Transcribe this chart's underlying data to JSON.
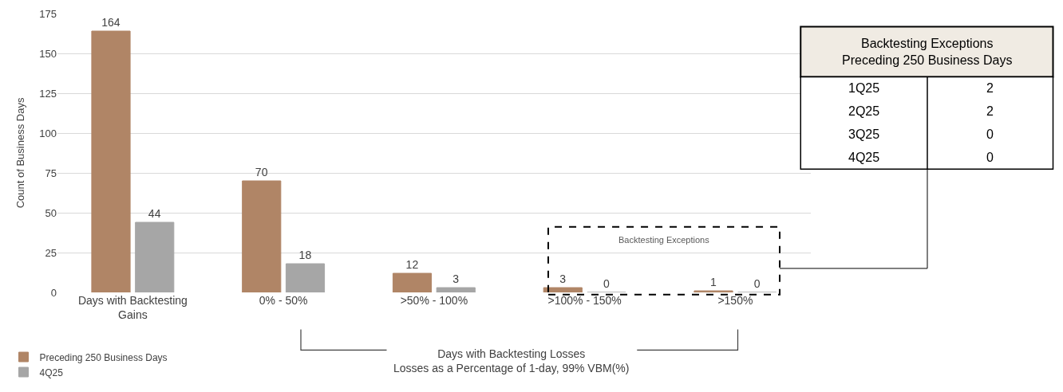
{
  "chart_data": {
    "type": "bar",
    "categories": [
      "Days with Backtesting\nGains",
      "0% - 50%",
      ">50% - 100%",
      ">100% - 150%",
      ">150%"
    ],
    "series": [
      {
        "name": "Preceding 250 Business Days",
        "color": "#b08566",
        "values": [
          164,
          70,
          12,
          3,
          1
        ]
      },
      {
        "name": "4Q25",
        "color": "#a6a6a6",
        "values": [
          44,
          18,
          3,
          0,
          0
        ]
      }
    ],
    "ylabel": "Count of Business Days",
    "ylim": [
      0,
      175
    ],
    "yticks": [
      0,
      25,
      50,
      75,
      100,
      125,
      150,
      175
    ],
    "grid": "y",
    "legend": "bottom left",
    "data_labels": true,
    "annotations": [
      "Backtesting Exceptions",
      "Days with Backtesting Losses\nLosses as a Percentage of 1-day, 99% VBM(%)",
      "Backtesting Exceptions\nPreceding 250 Business Days",
      "1Q25",
      "2",
      "2Q25",
      "2",
      "3Q25",
      "0",
      "4Q25",
      "0"
    ]
  }
}
